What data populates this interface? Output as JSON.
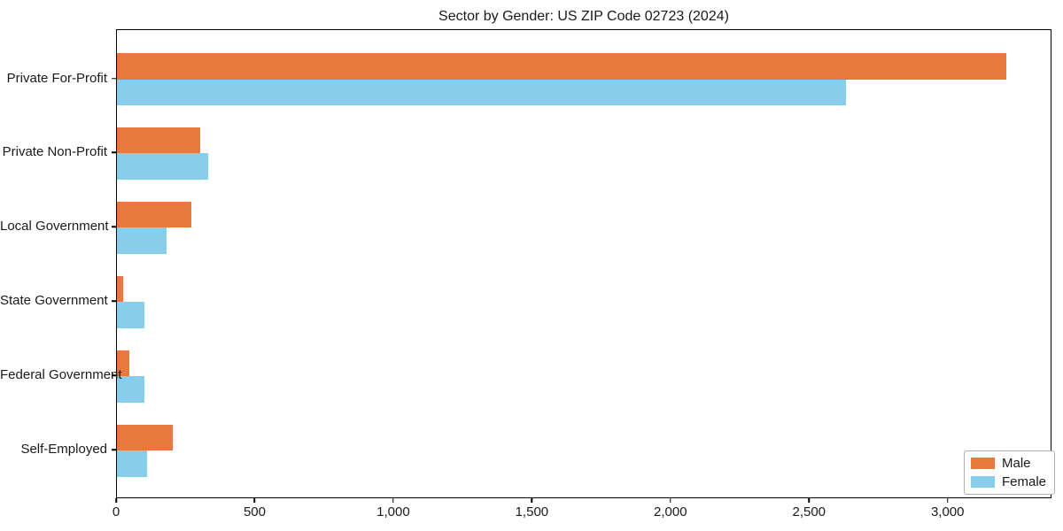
{
  "title": "Sector by Gender: US ZIP Code 02723 (2024)",
  "chart_data": {
    "type": "bar",
    "orientation": "horizontal",
    "title": "Sector by Gender: US ZIP Code 02723 (2024)",
    "categories": [
      "Private For-Profit",
      "Private Non-Profit",
      "Local Government",
      "State Government",
      "Federal Government",
      "Self-Employed"
    ],
    "series": [
      {
        "name": "Male",
        "color": "#E8793E",
        "values": [
          3210,
          300,
          270,
          22,
          45,
          200
        ]
      },
      {
        "name": "Female",
        "color": "#87CEEB",
        "values": [
          2630,
          330,
          180,
          100,
          100,
          110
        ]
      }
    ],
    "xlabel": "",
    "ylabel": "",
    "xlim": [
      0,
      3370
    ],
    "xticks": {
      "values": [
        0,
        500,
        1000,
        1500,
        2000,
        2500,
        3000
      ],
      "labels": [
        "0",
        "500",
        "1,000",
        "1,500",
        "2,000",
        "2,500",
        "3,000"
      ]
    },
    "grid": false,
    "legend": {
      "position": "lower right"
    }
  }
}
